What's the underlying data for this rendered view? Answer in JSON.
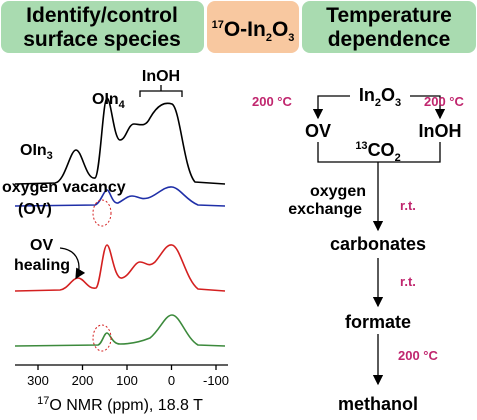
{
  "header": {
    "left": [
      "Identify/control",
      "surface species"
    ],
    "center": [
      "17",
      "O-In",
      "2",
      "O",
      "3"
    ],
    "right": [
      "Temperature",
      "dependence"
    ]
  },
  "spectra": {
    "oin3": [
      "OIn",
      "3"
    ],
    "oin4": [
      "OIn",
      "4"
    ],
    "inoh": "InOH",
    "vacancy": "oxygen vacancy",
    "ov": "(OV)",
    "healing": [
      "OV",
      "healing"
    ],
    "ticks": [
      "300",
      "200",
      "100",
      "0",
      "-100"
    ],
    "axis_label": [
      "17",
      "O NMR (ppm), 18.8 T"
    ]
  },
  "scheme": {
    "in2o3": [
      "In",
      "2",
      "O",
      "3"
    ],
    "temp_left": "200 °C",
    "temp_right": "200 °C",
    "ov": "OV",
    "inoh": "InOH",
    "co2": [
      "13",
      "CO",
      "2"
    ],
    "exchange": [
      "oxygen",
      "exchange"
    ],
    "rt1": "r.t.",
    "carbonates": "carbonates",
    "rt2": "r.t.",
    "formate": "formate",
    "temp3": "200 °C",
    "methanol": "methanol"
  }
}
